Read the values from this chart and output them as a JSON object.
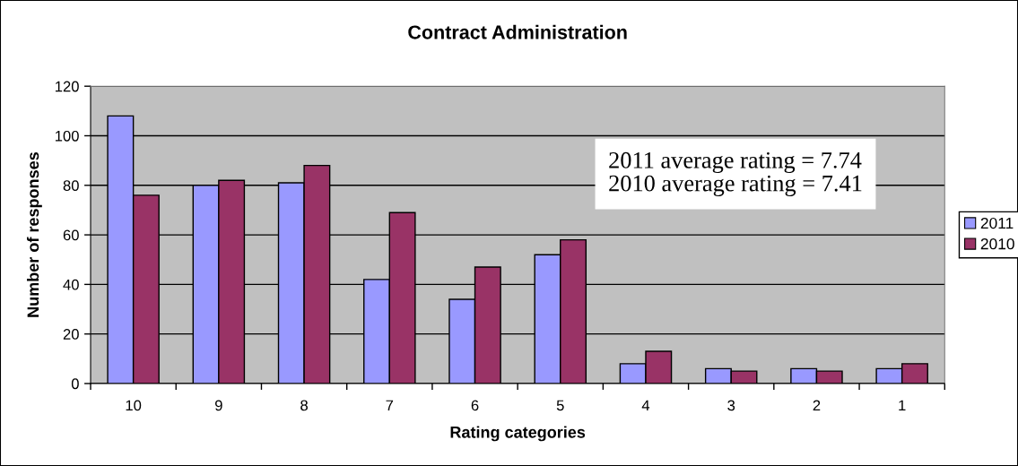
{
  "chart_data": {
    "type": "bar",
    "title": "Contract Administration",
    "xlabel": "Rating categories",
    "ylabel": "Number of responses",
    "categories": [
      "10",
      "9",
      "8",
      "7",
      "6",
      "5",
      "4",
      "3",
      "2",
      "1"
    ],
    "series": [
      {
        "name": "2011",
        "color": "#9999ff",
        "values": [
          108,
          80,
          81,
          42,
          34,
          52,
          8,
          6,
          6,
          6
        ]
      },
      {
        "name": "2010",
        "color": "#993366",
        "values": [
          76,
          82,
          88,
          69,
          47,
          58,
          13,
          5,
          5,
          8
        ]
      }
    ],
    "ylim": [
      0,
      120
    ],
    "yticks": [
      0,
      20,
      40,
      60,
      80,
      100,
      120
    ],
    "grid": "y",
    "legend": "right",
    "annotations": [
      "2011 average rating = 7.74",
      "2010 average rating = 7.41"
    ]
  }
}
